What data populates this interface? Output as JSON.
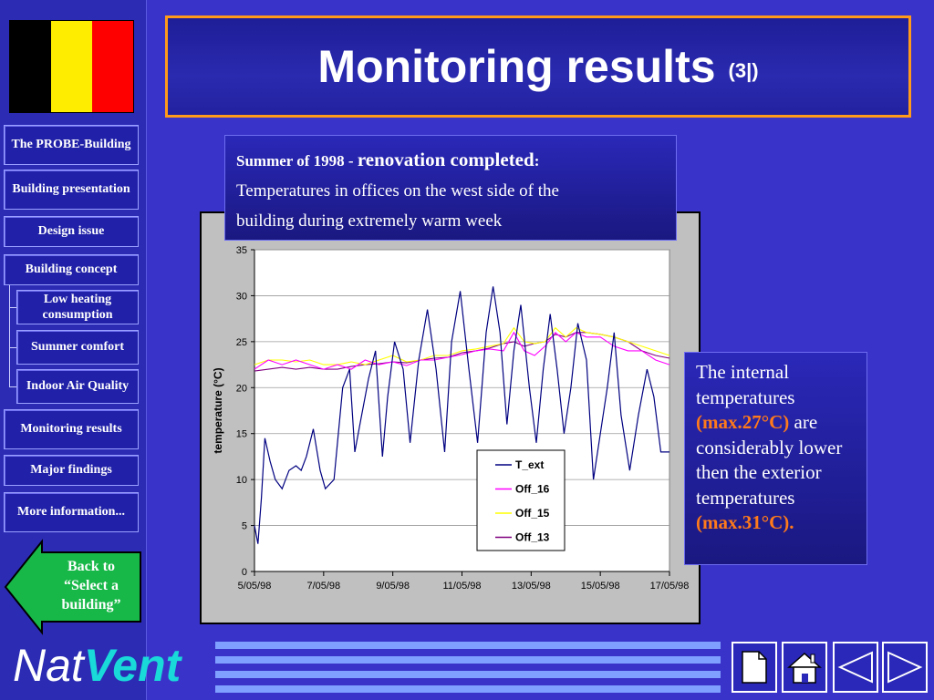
{
  "colors": {
    "background": "#3a33c9",
    "title_border": "#ff9a1a",
    "highlight": "#ff7a1a",
    "logo_vent": "#19d9d9",
    "flag": [
      "#000000",
      "#ffed00",
      "#ff0000"
    ]
  },
  "title": {
    "main": "Monitoring results",
    "sub": "(3|)"
  },
  "sidebar": {
    "items": [
      {
        "label": "The PROBE-Building"
      },
      {
        "label": "Building presentation"
      },
      {
        "label": "Design issue"
      },
      {
        "label": "Building concept"
      },
      {
        "label": "Low heating consumption"
      },
      {
        "label": "Summer comfort"
      },
      {
        "label": "Indoor Air Quality"
      },
      {
        "label": "Monitoring results"
      },
      {
        "label": "Major findings"
      },
      {
        "label": "More information..."
      }
    ],
    "back": {
      "line1": "Back  to",
      "line2": "“Select  a",
      "line3": "building”",
      "icon": "back-arrow-icon"
    }
  },
  "description": {
    "prefix": "Summer of 1998 - ",
    "emphasis": "renovation completed",
    "suffix": ":",
    "line1": "Temperatures in offices on the west side of the",
    "line2": "building during extremely warm week"
  },
  "note": {
    "text1": "The internal temperatures",
    "hl1": "(max.27°C)",
    "text2": "are considerably lower then the exterior temperatures",
    "hl2": "(max.31°C)."
  },
  "logo": {
    "part1": "Nat",
    "part2": "Vent"
  },
  "nav_icons": [
    "page-icon",
    "home-icon",
    "previous-icon",
    "next-icon"
  ],
  "chart_data": {
    "type": "line",
    "title": "",
    "xlabel": "",
    "ylabel": "temperature (°C)",
    "ylim": [
      0,
      35
    ],
    "yticks": [
      0,
      5,
      10,
      15,
      20,
      25,
      30,
      35
    ],
    "xlim": [
      0,
      12
    ],
    "xticks": [
      {
        "x": 0,
        "label": "5/05/98"
      },
      {
        "x": 2,
        "label": "7/05/98"
      },
      {
        "x": 4,
        "label": "9/05/98"
      },
      {
        "x": 6,
        "label": "11/05/98"
      },
      {
        "x": 8,
        "label": "13/05/98"
      },
      {
        "x": 10,
        "label": "15/05/98"
      },
      {
        "x": 12,
        "label": "17/05/98"
      }
    ],
    "grid": "horizontal",
    "legend_position": "right",
    "series": [
      {
        "name": "T_ext",
        "color": "#000080",
        "x": [
          0,
          0.1,
          0.2,
          0.3,
          0.45,
          0.6,
          0.8,
          1.0,
          1.2,
          1.35,
          1.5,
          1.7,
          1.9,
          2.05,
          2.3,
          2.55,
          2.75,
          2.9,
          3.05,
          3.3,
          3.5,
          3.7,
          3.85,
          4.05,
          4.3,
          4.5,
          4.75,
          5.0,
          5.25,
          5.5,
          5.7,
          5.95,
          6.2,
          6.45,
          6.7,
          6.9,
          7.1,
          7.3,
          7.5,
          7.7,
          7.95,
          8.15,
          8.35,
          8.55,
          8.75,
          8.95,
          9.15,
          9.35,
          9.6,
          9.8,
          10.0,
          10.2,
          10.4,
          10.6,
          10.85,
          11.1,
          11.35,
          11.55,
          11.75,
          12.0
        ],
        "y": [
          5,
          3,
          8,
          14.5,
          12,
          10,
          9,
          11,
          11.5,
          11,
          12.5,
          15.5,
          11,
          9,
          10,
          20,
          22,
          13,
          16,
          21,
          24,
          12.5,
          19,
          25,
          22,
          14,
          23,
          28.5,
          22,
          13,
          25,
          30.5,
          22,
          14,
          26,
          31,
          26,
          16,
          24,
          29,
          20,
          14,
          22,
          28,
          22,
          15,
          20,
          27,
          23,
          10,
          15,
          20,
          26,
          17,
          11,
          17,
          22,
          19,
          13,
          13
        ]
      },
      {
        "name": "Off_16",
        "color": "#ff00ff",
        "x": [
          0,
          0.4,
          0.8,
          1.2,
          1.6,
          2.0,
          2.4,
          2.8,
          3.2,
          3.6,
          4.0,
          4.4,
          4.8,
          5.2,
          5.6,
          6.0,
          6.4,
          6.8,
          7.2,
          7.5,
          7.8,
          8.1,
          8.4,
          8.7,
          9.0,
          9.3,
          9.6,
          10.0,
          10.4,
          10.8,
          11.2,
          11.6,
          12.0
        ],
        "y": [
          22,
          23,
          22.5,
          23,
          22.5,
          22,
          22.5,
          22,
          23,
          22.5,
          22.8,
          22.4,
          23,
          23,
          23.3,
          23.6,
          24,
          24.2,
          24,
          26,
          24,
          23.5,
          24.5,
          26,
          25,
          26,
          25.5,
          25.5,
          24.5,
          24,
          24,
          23,
          22.5
        ]
      },
      {
        "name": "Off_15",
        "color": "#ffff00",
        "x": [
          0,
          0.4,
          0.8,
          1.2,
          1.6,
          2.0,
          2.4,
          2.8,
          3.2,
          3.6,
          4.0,
          4.4,
          4.8,
          5.2,
          5.6,
          6.0,
          6.4,
          6.8,
          7.2,
          7.5,
          7.8,
          8.1,
          8.4,
          8.7,
          9.0,
          9.3,
          9.6,
          10.0,
          10.4,
          10.8,
          11.2,
          11.6,
          12.0
        ],
        "y": [
          22.5,
          23,
          23,
          22.8,
          23,
          22.5,
          22.5,
          22.8,
          22.5,
          23,
          23.5,
          22.8,
          23,
          23.5,
          23.5,
          24,
          24.2,
          24.5,
          24.8,
          26.5,
          25,
          24.8,
          25,
          26.5,
          25.5,
          26.5,
          26,
          25.8,
          25.5,
          25,
          24.5,
          24,
          23.5
        ]
      },
      {
        "name": "Off_13",
        "color": "#800080",
        "x": [
          0,
          0.4,
          0.8,
          1.2,
          1.6,
          2.0,
          2.4,
          2.8,
          3.2,
          3.6,
          4.0,
          4.4,
          4.8,
          5.2,
          5.6,
          6.0,
          6.4,
          6.8,
          7.2,
          7.5,
          7.8,
          8.1,
          8.4,
          8.7,
          9.0,
          9.3,
          9.6,
          10.0,
          10.4,
          10.8,
          11.2,
          11.6,
          12.0
        ],
        "y": [
          21.8,
          22,
          22.2,
          22,
          22.2,
          22,
          22,
          22.3,
          22.5,
          22.6,
          22.8,
          22.7,
          23,
          23.2,
          23.3,
          23.8,
          24,
          24.3,
          24.8,
          25,
          24.5,
          24.8,
          25,
          25.8,
          25.5,
          26,
          26,
          25.8,
          25.5,
          25,
          24,
          23.5,
          23.2
        ]
      }
    ]
  }
}
